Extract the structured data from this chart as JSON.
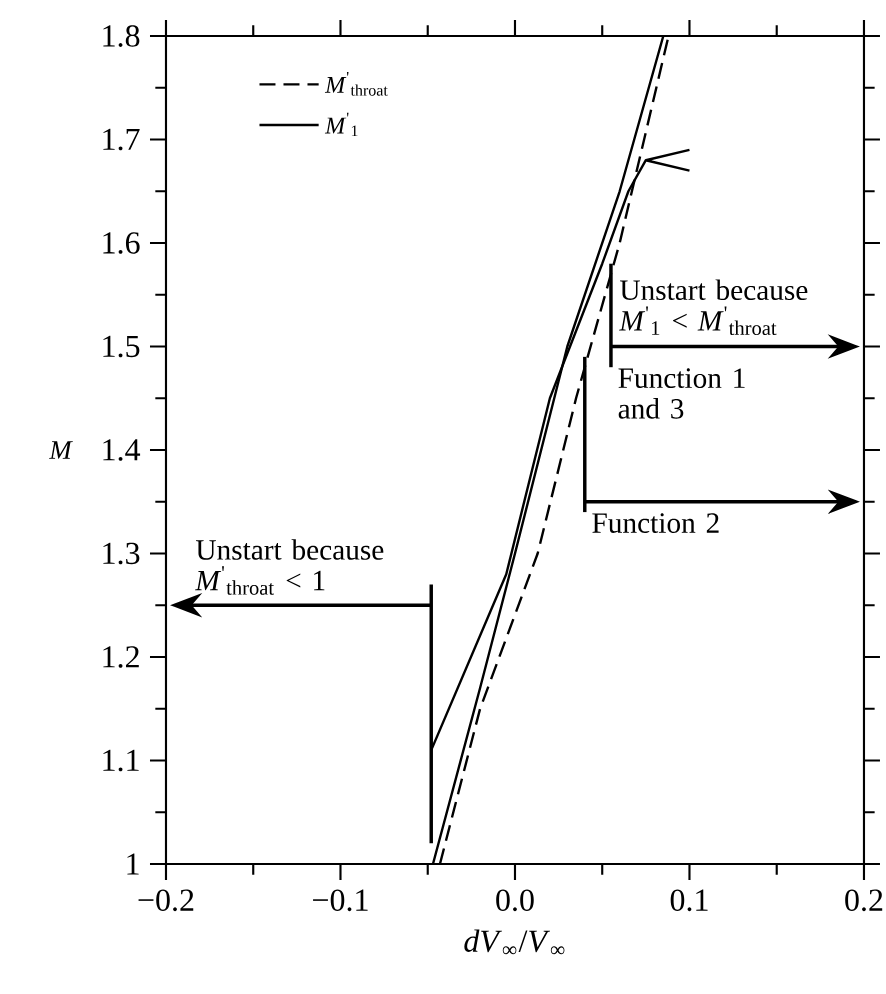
{
  "chart_data": {
    "type": "line",
    "xlabel": "*dV*$_{∞}$/*V*$_{∞}$",
    "ylabel": "M",
    "xlim": [
      -0.2,
      0.2
    ],
    "xticks": [
      {
        "value": -0.2,
        "label": "−0.2"
      },
      {
        "value": -0.1,
        "label": "−0.1"
      },
      {
        "value": 0.0,
        "label": "0.0"
      },
      {
        "value": 0.1,
        "label": "0.1"
      },
      {
        "value": 0.2,
        "label": "0.2"
      }
    ],
    "ylim": [
      1.0,
      1.8
    ],
    "yticks": [
      1,
      1.1,
      1.2,
      1.3,
      1.4,
      1.5,
      1.6,
      1.7,
      1.8
    ],
    "legend": "top left",
    "series": [
      {
        "name": "*M*$^{'}$$_{throat}$",
        "color": "#000000",
        "line_style": "dashed",
        "x": [
          -0.043,
          -0.02,
          0.013,
          0.035,
          0.06,
          0.088
        ],
        "values": [
          1.0,
          1.15,
          1.3,
          1.45,
          1.6,
          1.8
        ]
      },
      {
        "name": "*M*$^{'}$$_{1}$",
        "color": "#000000",
        "line_style": "solid",
        "x": [
          -0.048,
          -0.005,
          0.02,
          0.05,
          0.065,
          0.075,
          0.1,
          null,
          0.075,
          0.1
        ],
        "values": [
          1.11,
          1.28,
          1.45,
          1.58,
          1.65,
          1.68,
          1.69,
          null,
          1.68,
          1.67
        ]
      },
      {
        "color": "#000000",
        "line_style": "solid",
        "x": [
          -0.047,
          -0.02,
          0.0,
          0.03,
          0.06,
          0.085
        ],
        "values": [
          1.0,
          1.17,
          1.3,
          1.5,
          1.65,
          1.8
        ]
      }
    ],
    "annotations": [
      "Unstart because *M*$^{'}$$_{throat}$ < 1",
      "Unstart because *M*$^{'}$$_{1}$ < *M*$^{'}$$_{throat}$",
      {
        "text": "Function 1 and 3",
        "x": 0.055,
        "y": 1.58
      },
      {
        "text": "Function 2",
        "x": 0.04,
        "y": 1.49
      }
    ]
  }
}
